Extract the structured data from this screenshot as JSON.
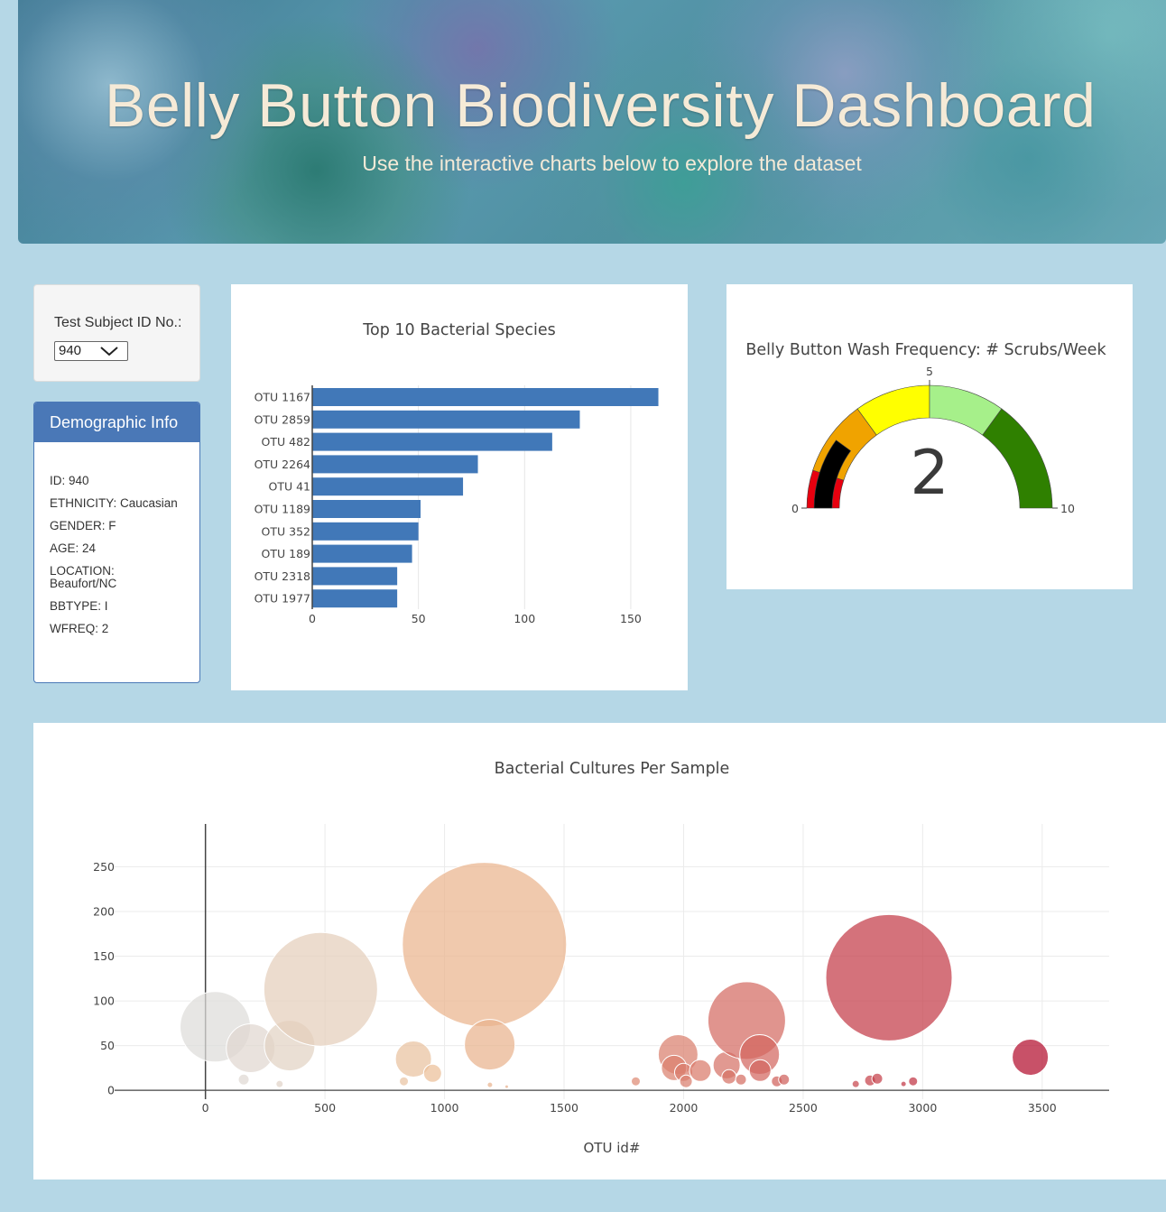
{
  "header": {
    "title": "Belly Button Biodiversity Dashboard",
    "subtitle": "Use the interactive charts below to explore the dataset"
  },
  "selector": {
    "label": "Test Subject ID No.:",
    "selected": "940"
  },
  "demographics": {
    "heading": "Demographic Info",
    "rows": [
      "ID: 940",
      "ETHNICITY: Caucasian",
      "GENDER: F",
      "AGE: 24",
      "LOCATION: Beaufort/NC",
      "BBTYPE: I",
      "WFREQ: 2"
    ]
  },
  "colors": {
    "bar": "#4178b8",
    "gauge_bands": [
      "#e8000f",
      "#f0a300",
      "#ffff00",
      "#a6f08a",
      "#2f8000"
    ],
    "gauge_needle_band": "#000000"
  },
  "chart_data": [
    {
      "type": "bar",
      "orientation": "horizontal",
      "title": "Top 10 Bacterial Species",
      "categories": [
        "OTU 1167",
        "OTU 2859",
        "OTU 482",
        "OTU 2264",
        "OTU 41",
        "OTU 1189",
        "OTU 352",
        "OTU 189",
        "OTU 2318",
        "OTU 1977"
      ],
      "values": [
        163,
        126,
        113,
        78,
        71,
        51,
        50,
        47,
        40,
        40
      ],
      "xlim": [
        0,
        170
      ],
      "xticks": [
        0,
        50,
        100,
        150
      ],
      "grid": true
    },
    {
      "type": "gauge",
      "title": "Belly Button Wash Frequency: # Scrubs/Week",
      "value": 2,
      "range": [
        0,
        10
      ],
      "tick_labels": [
        "0",
        "5",
        "10"
      ],
      "bands": [
        [
          0,
          1
        ],
        [
          1,
          3
        ],
        [
          3,
          5
        ],
        [
          5,
          7
        ],
        [
          7,
          10
        ]
      ]
    },
    {
      "type": "scatter",
      "title": "Bacterial Cultures Per Sample",
      "xlabel": "OTU id#",
      "ylabel": "",
      "xlim": [
        -380,
        3780
      ],
      "ylim": [
        -10,
        298
      ],
      "xticks": [
        0,
        500,
        1000,
        1500,
        2000,
        2500,
        3000,
        3500
      ],
      "yticks": [
        0,
        50,
        100,
        150,
        200,
        250
      ],
      "grid": true,
      "points": [
        {
          "x": 41,
          "y": 71,
          "r": 39
        },
        {
          "x": 189,
          "y": 47,
          "r": 27
        },
        {
          "x": 352,
          "y": 50,
          "r": 28
        },
        {
          "x": 482,
          "y": 113,
          "r": 63
        },
        {
          "x": 160,
          "y": 12,
          "r": 6
        },
        {
          "x": 310,
          "y": 7,
          "r": 4
        },
        {
          "x": 870,
          "y": 35,
          "r": 20
        },
        {
          "x": 950,
          "y": 19,
          "r": 10
        },
        {
          "x": 830,
          "y": 10,
          "r": 5
        },
        {
          "x": 1167,
          "y": 163,
          "r": 91
        },
        {
          "x": 1189,
          "y": 51,
          "r": 28
        },
        {
          "x": 1190,
          "y": 6,
          "r": 3
        },
        {
          "x": 1260,
          "y": 4,
          "r": 2
        },
        {
          "x": 1800,
          "y": 10,
          "r": 5
        },
        {
          "x": 1977,
          "y": 40,
          "r": 22
        },
        {
          "x": 1960,
          "y": 25,
          "r": 14
        },
        {
          "x": 2000,
          "y": 20,
          "r": 10
        },
        {
          "x": 2010,
          "y": 10,
          "r": 7
        },
        {
          "x": 2070,
          "y": 22,
          "r": 12
        },
        {
          "x": 2180,
          "y": 28,
          "r": 15
        },
        {
          "x": 2190,
          "y": 15,
          "r": 8
        },
        {
          "x": 2264,
          "y": 78,
          "r": 43
        },
        {
          "x": 2318,
          "y": 40,
          "r": 22
        },
        {
          "x": 2320,
          "y": 22,
          "r": 12
        },
        {
          "x": 2240,
          "y": 12,
          "r": 6
        },
        {
          "x": 2390,
          "y": 10,
          "r": 6
        },
        {
          "x": 2420,
          "y": 12,
          "r": 6
        },
        {
          "x": 2720,
          "y": 7,
          "r": 4
        },
        {
          "x": 2780,
          "y": 11,
          "r": 6
        },
        {
          "x": 2810,
          "y": 13,
          "r": 6
        },
        {
          "x": 2859,
          "y": 126,
          "r": 70
        },
        {
          "x": 2920,
          "y": 7,
          "r": 3
        },
        {
          "x": 2960,
          "y": 10,
          "r": 5
        },
        {
          "x": 3450,
          "y": 37,
          "r": 20
        }
      ]
    }
  ]
}
